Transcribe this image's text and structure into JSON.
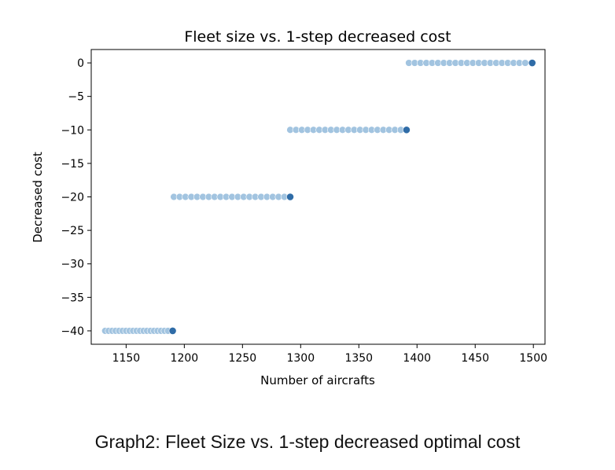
{
  "chart_data": {
    "type": "scatter",
    "title": "Fleet size vs. 1-step decreased cost",
    "xlabel": "Number of aircrafts",
    "ylabel": "Decreased cost",
    "xlim": [
      1120,
      1510
    ],
    "ylim": [
      -42,
      2
    ],
    "x_ticks": [
      1150,
      1200,
      1250,
      1300,
      1350,
      1400,
      1450,
      1500
    ],
    "y_ticks": [
      0,
      -5,
      -10,
      -15,
      -20,
      -25,
      -30,
      -35,
      -40
    ],
    "grid": false,
    "colors": {
      "point": "#a2c4e0",
      "step_endpoint": "#2f6ca7",
      "axis": "#000000"
    },
    "series": [
      {
        "points": [
          [
            1132,
            -40
          ],
          [
            1135,
            -40
          ],
          [
            1138,
            -40
          ],
          [
            1141,
            -40
          ],
          [
            1144,
            -40
          ],
          [
            1147,
            -40
          ],
          [
            1150,
            -40
          ],
          [
            1153,
            -40
          ],
          [
            1156,
            -40
          ],
          [
            1159,
            -40
          ],
          [
            1162,
            -40
          ],
          [
            1165,
            -40
          ],
          [
            1168,
            -40
          ],
          [
            1171,
            -40
          ],
          [
            1174,
            -40
          ],
          [
            1177,
            -40
          ],
          [
            1180,
            -40
          ],
          [
            1183,
            -40
          ],
          [
            1186,
            -40
          ],
          [
            1191,
            -20
          ],
          [
            1196,
            -20
          ],
          [
            1201,
            -20
          ],
          [
            1206,
            -20
          ],
          [
            1211,
            -20
          ],
          [
            1216,
            -20
          ],
          [
            1221,
            -20
          ],
          [
            1226,
            -20
          ],
          [
            1231,
            -20
          ],
          [
            1236,
            -20
          ],
          [
            1241,
            -20
          ],
          [
            1246,
            -20
          ],
          [
            1251,
            -20
          ],
          [
            1256,
            -20
          ],
          [
            1261,
            -20
          ],
          [
            1266,
            -20
          ],
          [
            1271,
            -20
          ],
          [
            1276,
            -20
          ],
          [
            1281,
            -20
          ],
          [
            1286,
            -20
          ],
          [
            1291,
            -10
          ],
          [
            1296,
            -10
          ],
          [
            1301,
            -10
          ],
          [
            1306,
            -10
          ],
          [
            1311,
            -10
          ],
          [
            1316,
            -10
          ],
          [
            1321,
            -10
          ],
          [
            1326,
            -10
          ],
          [
            1331,
            -10
          ],
          [
            1336,
            -10
          ],
          [
            1341,
            -10
          ],
          [
            1346,
            -10
          ],
          [
            1351,
            -10
          ],
          [
            1356,
            -10
          ],
          [
            1361,
            -10
          ],
          [
            1366,
            -10
          ],
          [
            1371,
            -10
          ],
          [
            1376,
            -10
          ],
          [
            1381,
            -10
          ],
          [
            1386,
            -10
          ],
          [
            1393,
            0
          ],
          [
            1398,
            0
          ],
          [
            1403,
            0
          ],
          [
            1408,
            0
          ],
          [
            1413,
            0
          ],
          [
            1418,
            0
          ],
          [
            1423,
            0
          ],
          [
            1428,
            0
          ],
          [
            1433,
            0
          ],
          [
            1438,
            0
          ],
          [
            1443,
            0
          ],
          [
            1448,
            0
          ],
          [
            1453,
            0
          ],
          [
            1458,
            0
          ],
          [
            1463,
            0
          ],
          [
            1468,
            0
          ],
          [
            1473,
            0
          ],
          [
            1478,
            0
          ],
          [
            1483,
            0
          ],
          [
            1488,
            0
          ],
          [
            1493,
            0
          ]
        ],
        "step_endpoints": [
          [
            1190,
            -40
          ],
          [
            1291,
            -20
          ],
          [
            1391,
            -10
          ],
          [
            1499,
            0
          ]
        ]
      }
    ]
  },
  "caption": "Graph2: Fleet Size vs. 1-step decreased optimal cost"
}
